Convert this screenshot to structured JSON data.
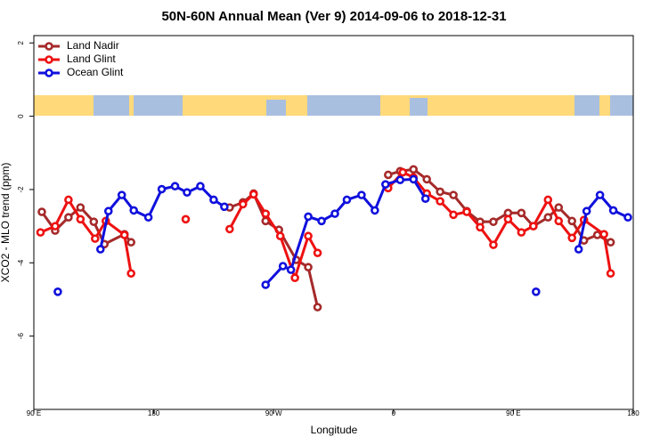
{
  "chart_data": {
    "type": "line",
    "title": "50N-60N Annual Mean (Ver 9)   2014-09-06 to 2018-12-31",
    "xlabel": "Longitude",
    "ylabel": "XCO2 - MLO trend (ppm)",
    "xlim": [
      90,
      540
    ],
    "xticks": [
      {
        "value": 90,
        "label": "90 E"
      },
      180,
      {
        "value": 270,
        "label": "90 W"
      },
      {
        "value": 360,
        "label": "0"
      },
      {
        "value": 450,
        "label": "90 E"
      },
      {
        "value": 540,
        "label": "180"
      }
    ],
    "ylim": [
      -8,
      2.2
    ],
    "yticks": [
      -6,
      -4,
      -2,
      0,
      2
    ],
    "legend": "upper left",
    "series": [
      {
        "name": "Land Nadir",
        "color": "#a52a2a",
        "x": [
          96,
          106,
          116,
          125,
          135,
          143,
          158,
          163,
          null,
          237,
          247,
          255,
          264,
          274,
          287,
          296,
          303,
          null,
          356,
          365,
          375,
          385,
          395,
          405,
          415,
          425,
          435,
          446,
          456,
          465,
          476,
          484,
          494,
          503,
          513,
          523
        ],
        "values": [
          -2.61,
          -3.12,
          -2.76,
          -2.49,
          -2.88,
          -3.49,
          -3.22,
          -3.44,
          null,
          -2.49,
          -2.35,
          -2.11,
          -2.86,
          -3.1,
          -3.92,
          -4.12,
          -5.21,
          null,
          -1.6,
          -1.5,
          -1.45,
          -1.72,
          -2.06,
          -2.15,
          -2.59,
          -2.88,
          -2.88,
          -2.64,
          -2.64,
          -3.0,
          -2.76,
          -2.49,
          -2.86,
          -3.39,
          -3.24,
          -3.44
        ]
      },
      {
        "name": "Land Glint",
        "color": "#ee1111",
        "x": [
          95,
          106,
          116,
          125,
          136,
          144,
          158,
          163,
          null,
          204,
          null,
          237,
          247,
          255,
          264,
          275,
          286,
          296,
          303,
          null,
          356,
          367,
          375,
          385,
          395,
          405,
          415,
          425,
          435,
          446,
          456,
          465,
          476,
          484,
          494,
          503,
          518,
          523
        ],
        "values": [
          -3.17,
          -3.0,
          -2.28,
          -2.81,
          -3.34,
          -2.86,
          -3.24,
          -4.29,
          null,
          -2.81,
          null,
          -3.08,
          -2.4,
          -2.13,
          -2.66,
          -3.27,
          -4.41,
          -3.27,
          -3.73,
          null,
          -1.96,
          -1.53,
          -1.67,
          -2.11,
          -2.32,
          -2.69,
          -2.61,
          -3.03,
          -3.51,
          -2.81,
          -3.17,
          -3.0,
          -2.28,
          -2.86,
          -3.32,
          -2.83,
          -3.22,
          -4.29
        ]
      },
      {
        "name": "Ocean Glint",
        "color": "#1010dd",
        "x": [
          108,
          null,
          140,
          146,
          156,
          165,
          176,
          186,
          196,
          205,
          215,
          225,
          233,
          null,
          264,
          277,
          283,
          296,
          306,
          316,
          325,
          336,
          346,
          354,
          365,
          375,
          384,
          null,
          467,
          null,
          499,
          505,
          515,
          525,
          536
        ],
        "values": [
          -4.79,
          null,
          -3.63,
          -2.59,
          -2.15,
          -2.57,
          -2.76,
          -1.99,
          -1.91,
          -2.08,
          -1.91,
          -2.28,
          -2.47,
          null,
          -4.6,
          -4.09,
          -4.19,
          -2.74,
          -2.86,
          -2.66,
          -2.28,
          -2.15,
          -2.57,
          -1.86,
          -1.74,
          -1.72,
          -2.25,
          null,
          -4.79,
          null,
          -3.63,
          -2.59,
          -2.15,
          -2.57,
          -2.76
        ]
      }
    ]
  }
}
